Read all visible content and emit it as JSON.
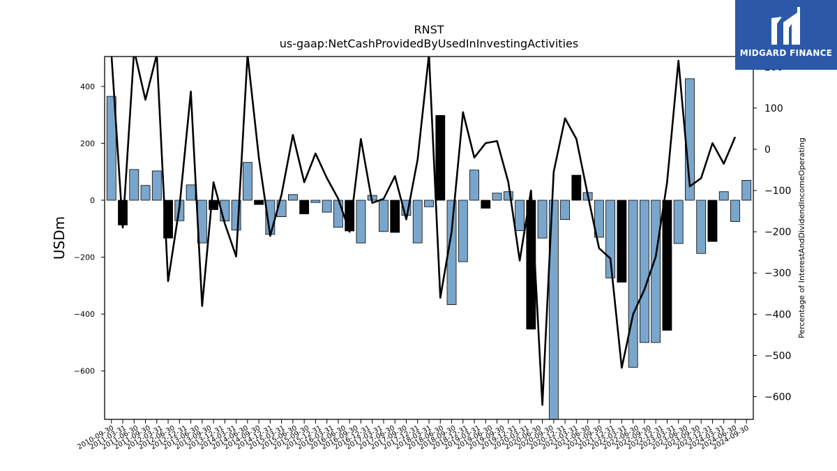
{
  "chart_data": {
    "type": "bar",
    "title": "RNST",
    "subtitle": "us-gaap:NetCashProvidedByUsedInInvestingActivities",
    "ylabel": "USDm",
    "y2label": "Percentage of InterestAndDividendIncomeOperating",
    "ylim": [
      -770,
      505
    ],
    "y2lim": [
      -655,
      225
    ],
    "yticks": [
      -600,
      -400,
      -200,
      0,
      200,
      400
    ],
    "y2ticks": [
      -600,
      -500,
      -400,
      -300,
      -200,
      -100,
      0,
      100,
      200
    ],
    "categories": [
      "2010-09-30",
      "2010-12-31",
      "2011-03-31",
      "2011-06-30",
      "2011-09-30",
      "2011-12-31",
      "2012-03-31",
      "2012-06-30",
      "2012-09-30",
      "2012-12-31",
      "2013-03-31",
      "2013-06-30",
      "2013-09-30",
      "2013-12-31",
      "2014-03-31",
      "2014-06-30",
      "2014-09-30",
      "2014-12-31",
      "2015-03-31",
      "2015-06-30",
      "2015-09-30",
      "2015-12-31",
      "2016-03-31",
      "2016-06-30",
      "2016-09-30",
      "2016-12-31",
      "2017-03-31",
      "2017-06-30",
      "2017-09-30",
      "2017-12-31",
      "2018-03-31",
      "2018-06-30",
      "2018-09-30",
      "2018-12-31",
      "2019-03-31",
      "2019-06-30",
      "2019-09-30",
      "2019-12-31",
      "2020-03-31",
      "2020-06-30",
      "2020-09-30",
      "2020-12-31",
      "2021-03-31",
      "2021-06-30",
      "2021-09-30",
      "2021-12-31",
      "2022-03-31",
      "2022-06-30",
      "2022-09-30",
      "2022-12-31",
      "2023-03-31",
      "2023-06-30",
      "2023-09-30",
      "2023-12-31",
      "2024-03-31",
      "2024-06-30",
      "2024-09-30"
    ],
    "xtick_labels": [
      "2010-09-30",
      "2011-03-31",
      "2011-06-30",
      "2011-09-30",
      "2012-03-31",
      "2012-06-30",
      "2012-12-31",
      "2013-06-30",
      "2013-09-30",
      "2013-12-31",
      "2014-03-31",
      "2014-06-30",
      "2014-09-30",
      "2014-12-31",
      "2015-03-31",
      "2015-06-30",
      "2015-09-30",
      "2015-12-31",
      "2016-03-31",
      "2016-06-30",
      "2016-09-30",
      "2016-12-31",
      "2017-03-31",
      "2017-06-30",
      "2017-09-30",
      "2017-12-31",
      "2018-03-31",
      "2018-06-30",
      "2018-09-30",
      "2018-12-31",
      "2019-03-31",
      "2019-06-30",
      "2019-09-30",
      "2019-12-31",
      "2020-03-31",
      "2020-06-30",
      "2020-09-30",
      "2020-12-31",
      "2021-03-31",
      "2021-06-30",
      "2021-09-30",
      "2021-12-31",
      "2022-03-31",
      "2022-06-30",
      "2022-09-30",
      "2022-12-31",
      "2023-03-31",
      "2023-06-30",
      "2023-09-30",
      "2023-12-31",
      "2024-03-31",
      "2024-06-30",
      "2024-09-30"
    ],
    "series": [
      {
        "kind": "bar",
        "values": [
          365,
          -87,
          108,
          52,
          103,
          -133,
          -72,
          54,
          -150,
          -33,
          -73,
          -105,
          133,
          -15,
          -120,
          -58,
          20,
          -48,
          -8,
          -42,
          -95,
          -108,
          -150,
          17,
          -110,
          -113,
          -53,
          -150,
          -23,
          298,
          -367,
          -216,
          106,
          -28,
          25,
          30,
          -107,
          -453,
          -133,
          -775,
          -68,
          88,
          27,
          -130,
          -273,
          -288,
          -587,
          -500,
          -500,
          -457,
          -152,
          427,
          -187,
          -145,
          30,
          -75,
          70
        ],
        "colors": [
          "#7aa6cc",
          "#000000",
          "#7aa6cc",
          "#7aa6cc",
          "#7aa6cc",
          "#000000",
          "#7aa6cc",
          "#7aa6cc",
          "#7aa6cc",
          "#000000",
          "#7aa6cc",
          "#7aa6cc",
          "#7aa6cc",
          "#000000",
          "#7aa6cc",
          "#7aa6cc",
          "#7aa6cc",
          "#000000",
          "#7aa6cc",
          "#7aa6cc",
          "#7aa6cc",
          "#000000",
          "#7aa6cc",
          "#7aa6cc",
          "#7aa6cc",
          "#000000",
          "#7aa6cc",
          "#7aa6cc",
          "#7aa6cc",
          "#000000",
          "#7aa6cc",
          "#7aa6cc",
          "#7aa6cc",
          "#000000",
          "#7aa6cc",
          "#7aa6cc",
          "#7aa6cc",
          "#000000",
          "#7aa6cc",
          "#7aa6cc",
          "#7aa6cc",
          "#000000",
          "#7aa6cc",
          "#7aa6cc",
          "#7aa6cc",
          "#000000",
          "#7aa6cc",
          "#7aa6cc",
          "#7aa6cc",
          "#000000",
          "#7aa6cc",
          "#7aa6cc",
          "#7aa6cc",
          "#000000",
          "#7aa6cc",
          "#7aa6cc",
          "#7aa6cc"
        ]
      },
      {
        "kind": "line",
        "axis": "right",
        "color": "#000000",
        "values": [
          230,
          -190,
          240,
          120,
          230,
          -320,
          -140,
          140,
          -380,
          -80,
          -180,
          -260,
          230,
          -20,
          -210,
          -110,
          35,
          -80,
          -10,
          -70,
          -120,
          -200,
          25,
          -130,
          -120,
          -65,
          -170,
          -25,
          230,
          -360,
          -200,
          90,
          -20,
          15,
          20,
          -80,
          -270,
          -100,
          -620,
          -55,
          75,
          25,
          -110,
          -240,
          -265,
          -530,
          -400,
          -340,
          -260,
          -80,
          215,
          -90,
          -70,
          15,
          -35,
          30,
          null
        ]
      }
    ],
    "grid": false,
    "legend": "none",
    "bar_colors": {
      "positive_blue": "#7aa6cc",
      "dark": "#000000"
    }
  },
  "brand": {
    "name": "MIDGARD FINANCE",
    "background": "#2b59a8"
  }
}
